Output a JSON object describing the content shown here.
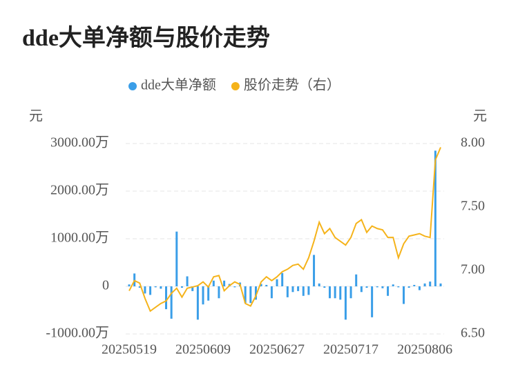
{
  "chart_data": {
    "type": "bar-line",
    "title": "dde大单净额与股价走势",
    "y_unit": "元",
    "y2_unit": "元",
    "categories": [
      "20250519",
      null,
      null,
      null,
      null,
      null,
      null,
      null,
      null,
      null,
      null,
      null,
      null,
      null,
      "20250609",
      null,
      null,
      null,
      null,
      null,
      null,
      null,
      null,
      null,
      null,
      null,
      null,
      null,
      "20250627",
      null,
      null,
      null,
      null,
      null,
      null,
      null,
      null,
      null,
      null,
      null,
      null,
      null,
      "20250717",
      null,
      null,
      null,
      null,
      null,
      null,
      null,
      null,
      null,
      null,
      null,
      null,
      null,
      "20250806",
      null,
      null,
      null
    ],
    "series": [
      {
        "name": "dde大单净额",
        "type": "bar",
        "color": "#3a9ee8",
        "values": [
          40,
          270,
          -30,
          -150,
          -180,
          -20,
          -50,
          -480,
          -680,
          1150,
          -30,
          210,
          -100,
          -700,
          -380,
          -300,
          120,
          -250,
          120,
          50,
          -20,
          80,
          -350,
          -350,
          -280,
          50,
          30,
          -250,
          150,
          280,
          -230,
          -120,
          -100,
          -200,
          -180,
          660,
          60,
          -30,
          -250,
          -250,
          -280,
          -700,
          -250,
          250,
          -120,
          -30,
          -650,
          -20,
          -40,
          -200,
          40,
          -20,
          -370,
          -30,
          30,
          -80,
          60,
          100,
          2850,
          60
        ]
      },
      {
        "name": "股价走势（右）",
        "type": "line",
        "axis": "y2",
        "color": "#f5b31a",
        "values": [
          6.84,
          6.92,
          6.9,
          6.78,
          6.68,
          6.71,
          6.74,
          6.76,
          6.82,
          6.86,
          6.79,
          6.86,
          6.87,
          6.88,
          6.91,
          6.87,
          6.95,
          6.96,
          6.84,
          6.88,
          6.91,
          6.89,
          6.74,
          6.72,
          6.8,
          6.91,
          6.95,
          6.92,
          6.95,
          6.99,
          7.01,
          7.04,
          7.05,
          7.01,
          7.1,
          7.23,
          7.38,
          7.29,
          7.33,
          7.26,
          7.23,
          7.2,
          7.26,
          7.37,
          7.4,
          7.3,
          7.35,
          7.33,
          7.32,
          7.26,
          7.26,
          7.1,
          7.21,
          7.27,
          7.28,
          7.29,
          7.27,
          7.26,
          7.87,
          7.97
        ]
      }
    ],
    "ylim": [
      -1000,
      3000
    ],
    "yticks": [
      {
        "value": -1000,
        "label": "-1000.00万"
      },
      0,
      {
        "value": 1000,
        "label": "1000.00万"
      },
      {
        "value": 2000,
        "label": "2000.00万"
      },
      {
        "value": 3000,
        "label": "3000.00万"
      }
    ],
    "y2lim": [
      6.5,
      8
    ],
    "y2ticks": [
      {
        "value": 6.5,
        "label": "6.50"
      },
      {
        "value": 7,
        "label": "7.00"
      },
      {
        "value": 7.5,
        "label": "7.50"
      },
      {
        "value": 8,
        "label": "8.00"
      }
    ],
    "grid": true
  }
}
